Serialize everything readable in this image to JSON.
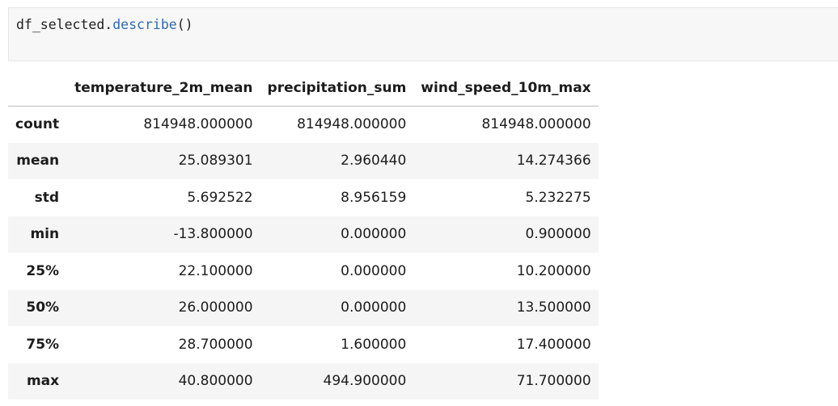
{
  "code_cell": {
    "variable": "df_selected",
    "dot": ".",
    "method": "describe",
    "parens": "()"
  },
  "table": {
    "index_header": "",
    "columns": [
      "temperature_2m_mean",
      "precipitation_sum",
      "wind_speed_10m_max"
    ],
    "rows": [
      {
        "label": "count",
        "values": [
          "814948.000000",
          "814948.000000",
          "814948.000000"
        ]
      },
      {
        "label": "mean",
        "values": [
          "25.089301",
          "2.960440",
          "14.274366"
        ]
      },
      {
        "label": "std",
        "values": [
          "5.692522",
          "8.956159",
          "5.232275"
        ]
      },
      {
        "label": "min",
        "values": [
          "-13.800000",
          "0.000000",
          "0.900000"
        ]
      },
      {
        "label": "25%",
        "values": [
          "22.100000",
          "0.000000",
          "10.200000"
        ]
      },
      {
        "label": "50%",
        "values": [
          "26.000000",
          "0.000000",
          "13.500000"
        ]
      },
      {
        "label": "75%",
        "values": [
          "28.700000",
          "1.600000",
          "17.400000"
        ]
      },
      {
        "label": "max",
        "values": [
          "40.800000",
          "494.900000",
          "71.700000"
        ]
      }
    ]
  },
  "colors": {
    "code_background": "#f7f7f7",
    "method_color": "#2b6cb0",
    "striped_row": "#f5f5f5"
  }
}
